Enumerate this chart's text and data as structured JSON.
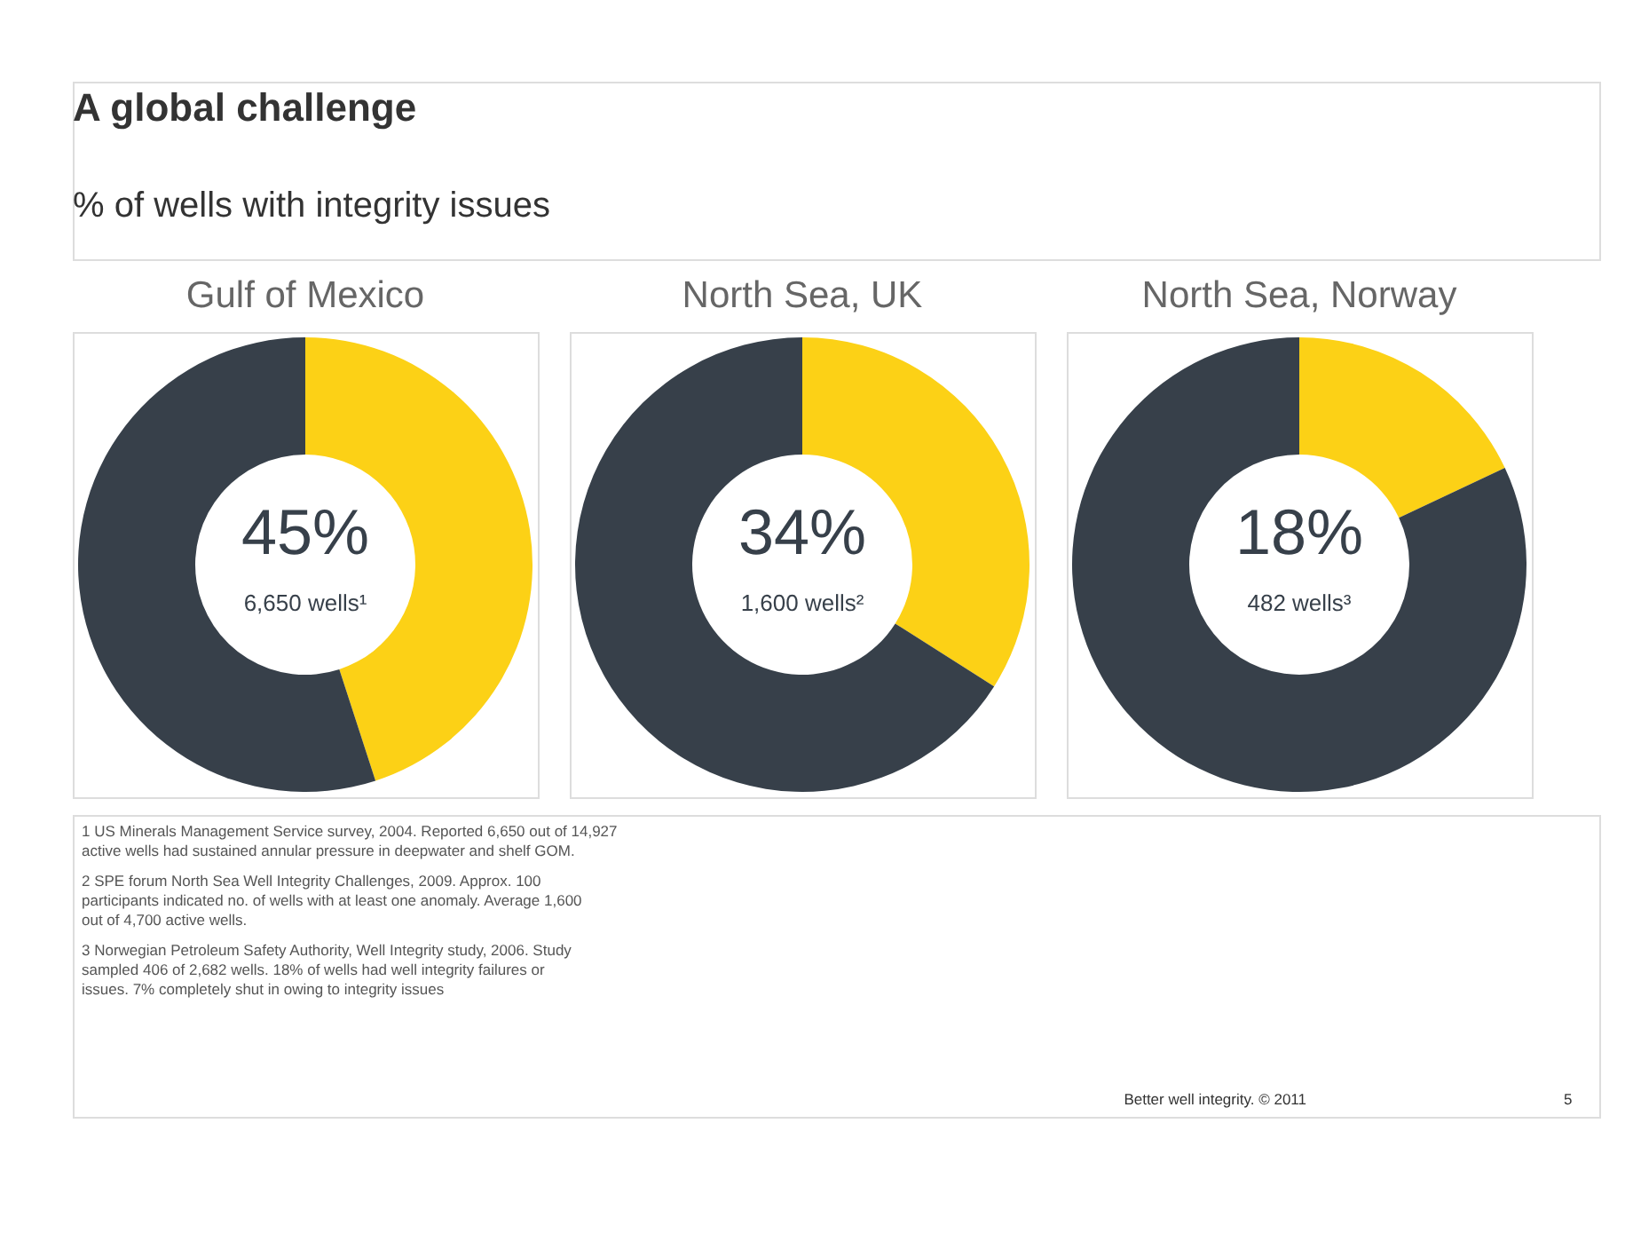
{
  "chart_data": [
    {
      "type": "other",
      "title": "A global challenge",
      "subtitle": "% of wells with integrity issues"
    },
    {
      "type": "donut",
      "title": "Gulf of Mexico",
      "categories": [
        null,
        null
      ],
      "values": [
        45,
        55
      ],
      "colors": [
        "#fcd116",
        "#37404a"
      ],
      "value_labels": [
        "45%",
        null
      ],
      "annotations": [
        "6,650 wells¹"
      ]
    },
    {
      "type": "donut",
      "title": "North Sea, UK",
      "categories": [
        null,
        null
      ],
      "values": [
        34,
        66
      ],
      "colors": [
        "#fcd116",
        "#37404a"
      ],
      "value_labels": [
        "34%",
        null
      ],
      "annotations": [
        "1,600 wells²"
      ]
    },
    {
      "type": "donut",
      "title": "North Sea, Norway",
      "categories": [
        null,
        null
      ],
      "values": [
        18,
        82
      ],
      "colors": [
        "#fcd116",
        "#37404a"
      ],
      "value_labels": [
        "18%",
        null
      ],
      "annotations": [
        "482 wells³"
      ]
    },
    {
      "type": "other",
      "annotations": [
        "1 US Minerals Management Service survey, 2004. Reported 6,650 out of 14,927 active wells had sustained annular pressure in deepwater and shelf GOM.",
        "2 SPE forum North Sea Well Integrity Challenges, 2009. Approx. 100 participants indicated no. of wells with at least one anomaly. Average 1,600 out of 4,700 active wells.",
        "3 Norwegian Petroleum Safety Authority, Well Integrity study, 2006. Study sampled 406 of 2,682 wells. 18% of wells had well integrity failures or issues. 7% completely shut in owing to integrity issues",
        "Better well integrity. © 2011",
        "5"
      ]
    }
  ]
}
